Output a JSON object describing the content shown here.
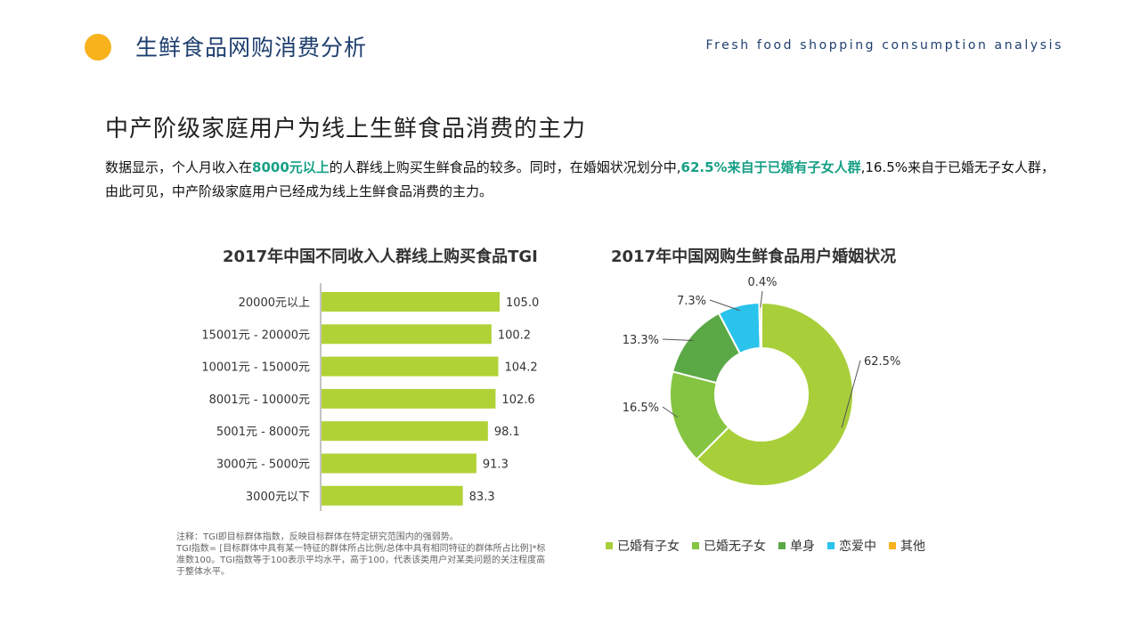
{
  "header": {
    "title": "生鲜食品网购消费分析",
    "subtitle_en": "Fresh food shopping consumption analysis"
  },
  "section": {
    "title": "中产阶级家庭用户为线上生鲜食品消费的主力",
    "summary": {
      "p1": "数据显示，个人月收入在",
      "h1": "8000元以上",
      "p2": "的人群线上购买生鲜食品的较多。同时，在婚姻状况划分中,",
      "h2": "62.5%来自于已婚有子女人群",
      "p3": ",16.5%来自于已婚无子女人群，由此可见，中产阶级家庭用户已经成为线上生鲜食品消费的主力。"
    }
  },
  "note": {
    "line1": "注释：TGI即目标群体指数，反映目标群体在特定研究范围内的强弱势。",
    "line2": "TGI指数= [目标群体中具有某一特征的群体所占比例/总体中具有相同特征的群体所占比例]*标准数100。TGI指数等于100表示平均水平，高于100，代表该类用户对某类问题的关注程度高于整体水平。"
  },
  "colors": {
    "accent": "#f7b21c",
    "title_blue": "#1f3f6e",
    "highlight": "#16a085",
    "bar": "#b1d236"
  },
  "chart_data": [
    {
      "type": "bar",
      "orientation": "horizontal",
      "title": "2017年中国不同收入人群线上购买食品TGI",
      "categories": [
        "20000元以上",
        "15001元 - 20000元",
        "10001元 - 15000元",
        "8001元 - 10000元",
        "5001元 - 8000元",
        "3000元 - 5000元",
        "3000元以下"
      ],
      "values": [
        105.0,
        100.2,
        104.2,
        102.6,
        98.1,
        91.3,
        83.3
      ],
      "value_labels": [
        "105.0",
        "100.2",
        "104.2",
        "102.6",
        "98.1",
        "91.3",
        "83.3"
      ],
      "xlim": [
        0,
        105
      ],
      "grid": false
    },
    {
      "type": "pie",
      "donut": true,
      "title": "2017年中国网购生鲜食品用户婚姻状况",
      "labels": [
        "已婚有子女",
        "已婚无子女",
        "单身",
        "恋爱中",
        "其他"
      ],
      "values": [
        62.5,
        16.5,
        13.3,
        7.3,
        0.4
      ],
      "value_labels": [
        "62.5%",
        "16.5%",
        "13.3%",
        "7.3%",
        "0.4%"
      ],
      "colors": [
        "#a8cf3a",
        "#84c441",
        "#5ba846",
        "#29c3ec",
        "#f7b21c"
      ],
      "legend_position": "bottom"
    }
  ]
}
